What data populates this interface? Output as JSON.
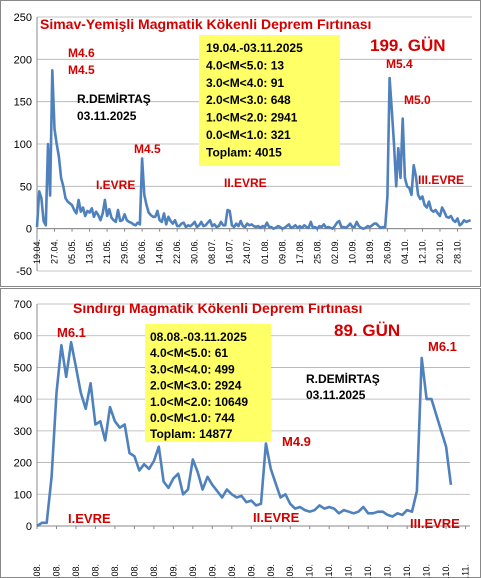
{
  "chart_data": [
    {
      "type": "line",
      "title": "Simav-Yemişli Magmatik Kökenli Deprem Fırtınası",
      "day_label": "199. GÜN",
      "author": "R.DEMİRTAŞ",
      "author_date": "03.11.2025",
      "ylim": [
        -50,
        250
      ],
      "yticks": [
        -50,
        0,
        50,
        100,
        150,
        200,
        250
      ],
      "series_color": "#4f81bd",
      "box_fill": "#ffff66",
      "stats": [
        "19.04.-03.11.2025",
        "4.0<M<5.0: 13",
        "3.0<M<4.0: 91",
        "2.0<M<3.0: 648",
        "1.0<M<2.0: 2941",
        "0.0<M<1.0: 321",
        "Toplam: 4015"
      ],
      "x_tick_labels": [
        "19.04.",
        "27.04.",
        "05.05.",
        "13.05.",
        "21.05.",
        "29.05.",
        "06.06.",
        "14.06.",
        "22.06.",
        "30.06.",
        "08.07.",
        "16.07.",
        "24.07.",
        "01.08.",
        "09.08.",
        "17.08.",
        "25.08.",
        "02.09.",
        "10.09.",
        "18.09.",
        "26.09.",
        "04.10.",
        "12.10.",
        "20.10.",
        "28.10."
      ],
      "tick_step_days": 8,
      "annotations": [
        {
          "text": "M4.6",
          "day": 8
        },
        {
          "text": "M4.5",
          "day": 8
        },
        {
          "text": "M4.5",
          "day": 48
        },
        {
          "text": "M5.4",
          "day": 160
        },
        {
          "text": "M5.0",
          "day": 172
        },
        {
          "text": "I.EVRE",
          "day": 14
        },
        {
          "text": "II.EVRE",
          "day": 86
        },
        {
          "text": "III.EVRE",
          "day": 184
        }
      ],
      "values": [
        2,
        44,
        36,
        9,
        4,
        100,
        39,
        187,
        118,
        100,
        85,
        60,
        50,
        36,
        32,
        30,
        28,
        22,
        18,
        34,
        20,
        25,
        15,
        21,
        19,
        24,
        14,
        20,
        16,
        10,
        18,
        34,
        15,
        23,
        13,
        10,
        8,
        22,
        9,
        10,
        17,
        10,
        8,
        7,
        5,
        4,
        7,
        5,
        83,
        40,
        28,
        19,
        16,
        14,
        14,
        21,
        10,
        8,
        18,
        5,
        14,
        9,
        6,
        10,
        3,
        3,
        6,
        7,
        2,
        4,
        3,
        5,
        8,
        2,
        4,
        8,
        3,
        4,
        7,
        10,
        3,
        5,
        2,
        3,
        8,
        4,
        4,
        22,
        21,
        4,
        2,
        6,
        3,
        9,
        3,
        2,
        6,
        4,
        5,
        3,
        2,
        3,
        1,
        3,
        2,
        7,
        2,
        2,
        0,
        1,
        3,
        2,
        0,
        1,
        3,
        5,
        1,
        2,
        4,
        1,
        3,
        1,
        4,
        2,
        1,
        8,
        1,
        2,
        0,
        3,
        2,
        5,
        1,
        2,
        1,
        0,
        3,
        7,
        9,
        2,
        2,
        1,
        3,
        6,
        2,
        2,
        8,
        3,
        1,
        0,
        1,
        3,
        2,
        4,
        6,
        6,
        3,
        1,
        2,
        2,
        38,
        178,
        140,
        100,
        50,
        95,
        60,
        130,
        60,
        50,
        48,
        40,
        75,
        62,
        40,
        35,
        38,
        28,
        25,
        32,
        22,
        20,
        22,
        18,
        15,
        25,
        20,
        14,
        13,
        15,
        10,
        8,
        12,
        4,
        6,
        10,
        8,
        9,
        10
      ]
    },
    {
      "type": "line",
      "title": "Sındırgı Magmatik Kökenli Deprem Fırtınası",
      "day_label": "89. GÜN",
      "author": "R.DEMİRTAŞ",
      "author_date": "03.11.2025",
      "ylim": [
        0,
        700
      ],
      "yticks": [
        0,
        100,
        200,
        300,
        400,
        500,
        600,
        700
      ],
      "series_color": "#4f81bd",
      "box_fill": "#ffff66",
      "stats": [
        "08.08.-03.11.2025",
        "4.0<M<5.0: 61",
        "3.0<M<4.0: 499",
        "2.0<M<3.0: 2924",
        "1.0<M<2.0: 10649",
        "0.0<M<1.0: 744",
        "Toplam: 14877"
      ],
      "x_tick_labels": [
        "07.08.",
        "11.08.",
        "15.08.",
        "19.08.",
        "23.08.",
        "27.08.",
        "31.08.",
        "04.09.",
        "08.09.",
        "12.09.",
        "16.09.",
        "20.09.",
        "24.09.",
        "28.09.",
        "02.10.",
        "06.10.",
        "10.10.",
        "14.10.",
        "18.10.",
        "22.10.",
        "26.10.",
        "30.10.",
        "03.11."
      ],
      "tick_step_days": 4,
      "annotations": [
        {
          "text": "M6.1",
          "day": 3
        },
        {
          "text": "M4.9",
          "day": 47
        },
        {
          "text": "M6.1",
          "day": 82
        },
        {
          "text": "I.EVRE",
          "day": 6
        },
        {
          "text": "II.EVRE",
          "day": 50
        },
        {
          "text": "III.EVRE",
          "day": 84
        }
      ],
      "values": [
        0,
        10,
        10,
        155,
        420,
        570,
        470,
        580,
        500,
        420,
        370,
        450,
        320,
        330,
        270,
        375,
        330,
        310,
        320,
        230,
        220,
        175,
        195,
        180,
        205,
        250,
        140,
        120,
        150,
        165,
        100,
        115,
        210,
        170,
        115,
        155,
        130,
        110,
        90,
        115,
        100,
        90,
        95,
        75,
        80,
        65,
        70,
        260,
        180,
        135,
        90,
        100,
        70,
        55,
        60,
        50,
        45,
        50,
        65,
        55,
        60,
        55,
        40,
        50,
        45,
        40,
        45,
        60,
        40,
        40,
        45,
        45,
        35,
        30,
        40,
        35,
        50,
        45,
        110,
        530,
        400,
        400,
        350,
        300,
        250,
        130
      ]
    }
  ]
}
